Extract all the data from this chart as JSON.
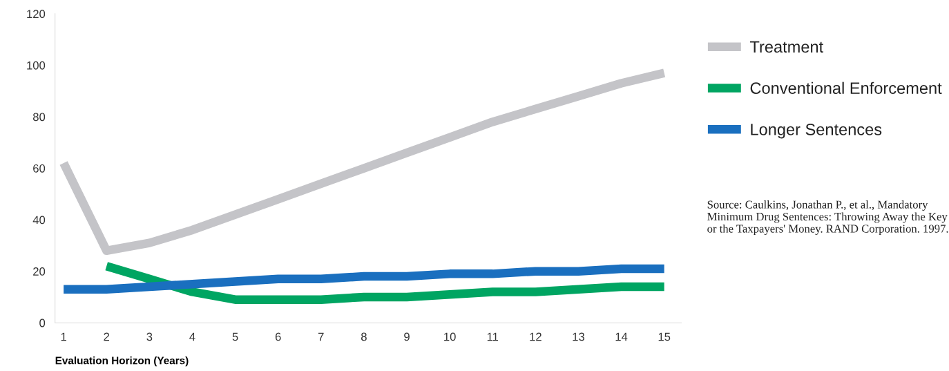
{
  "chart_data": {
    "type": "line",
    "xlabel": "Evaluation Horizon (Years)",
    "x": [
      1,
      2,
      3,
      4,
      5,
      6,
      7,
      8,
      9,
      10,
      11,
      12,
      13,
      14,
      15
    ],
    "series": [
      {
        "name": "Treatment",
        "color": "#c4c4c8",
        "values": [
          62,
          28,
          31,
          36,
          42,
          48,
          54,
          60,
          66,
          72,
          78,
          83,
          88,
          93,
          97
        ]
      },
      {
        "name": "Conventional Enforcement",
        "color": "#00a562",
        "values": [
          null,
          22,
          17,
          12,
          9,
          9,
          9,
          10,
          10,
          11,
          12,
          12,
          13,
          14,
          14
        ]
      },
      {
        "name": "Longer Sentences",
        "color": "#1a6fbf",
        "values": [
          13,
          13,
          14,
          15,
          16,
          17,
          17,
          18,
          18,
          19,
          19,
          20,
          20,
          21,
          21
        ]
      }
    ],
    "xlim": [
      0.8,
      15.4
    ],
    "xticks": [
      1,
      2,
      3,
      4,
      5,
      6,
      7,
      8,
      9,
      10,
      11,
      12,
      13,
      14,
      15
    ],
    "ylim": [
      0,
      120
    ],
    "yticks": [
      0,
      20,
      40,
      60,
      80,
      100,
      120
    ],
    "grid": false,
    "legend": "right",
    "marker": "none",
    "line_style": "solid",
    "annotations": [
      "Source: Caulkins, Jonathan P., et al., Mandatory Minimum Drug Sentences: Throwing Away the Key or the Taxpayers' Money. RAND Corporation. 1997."
    ]
  }
}
